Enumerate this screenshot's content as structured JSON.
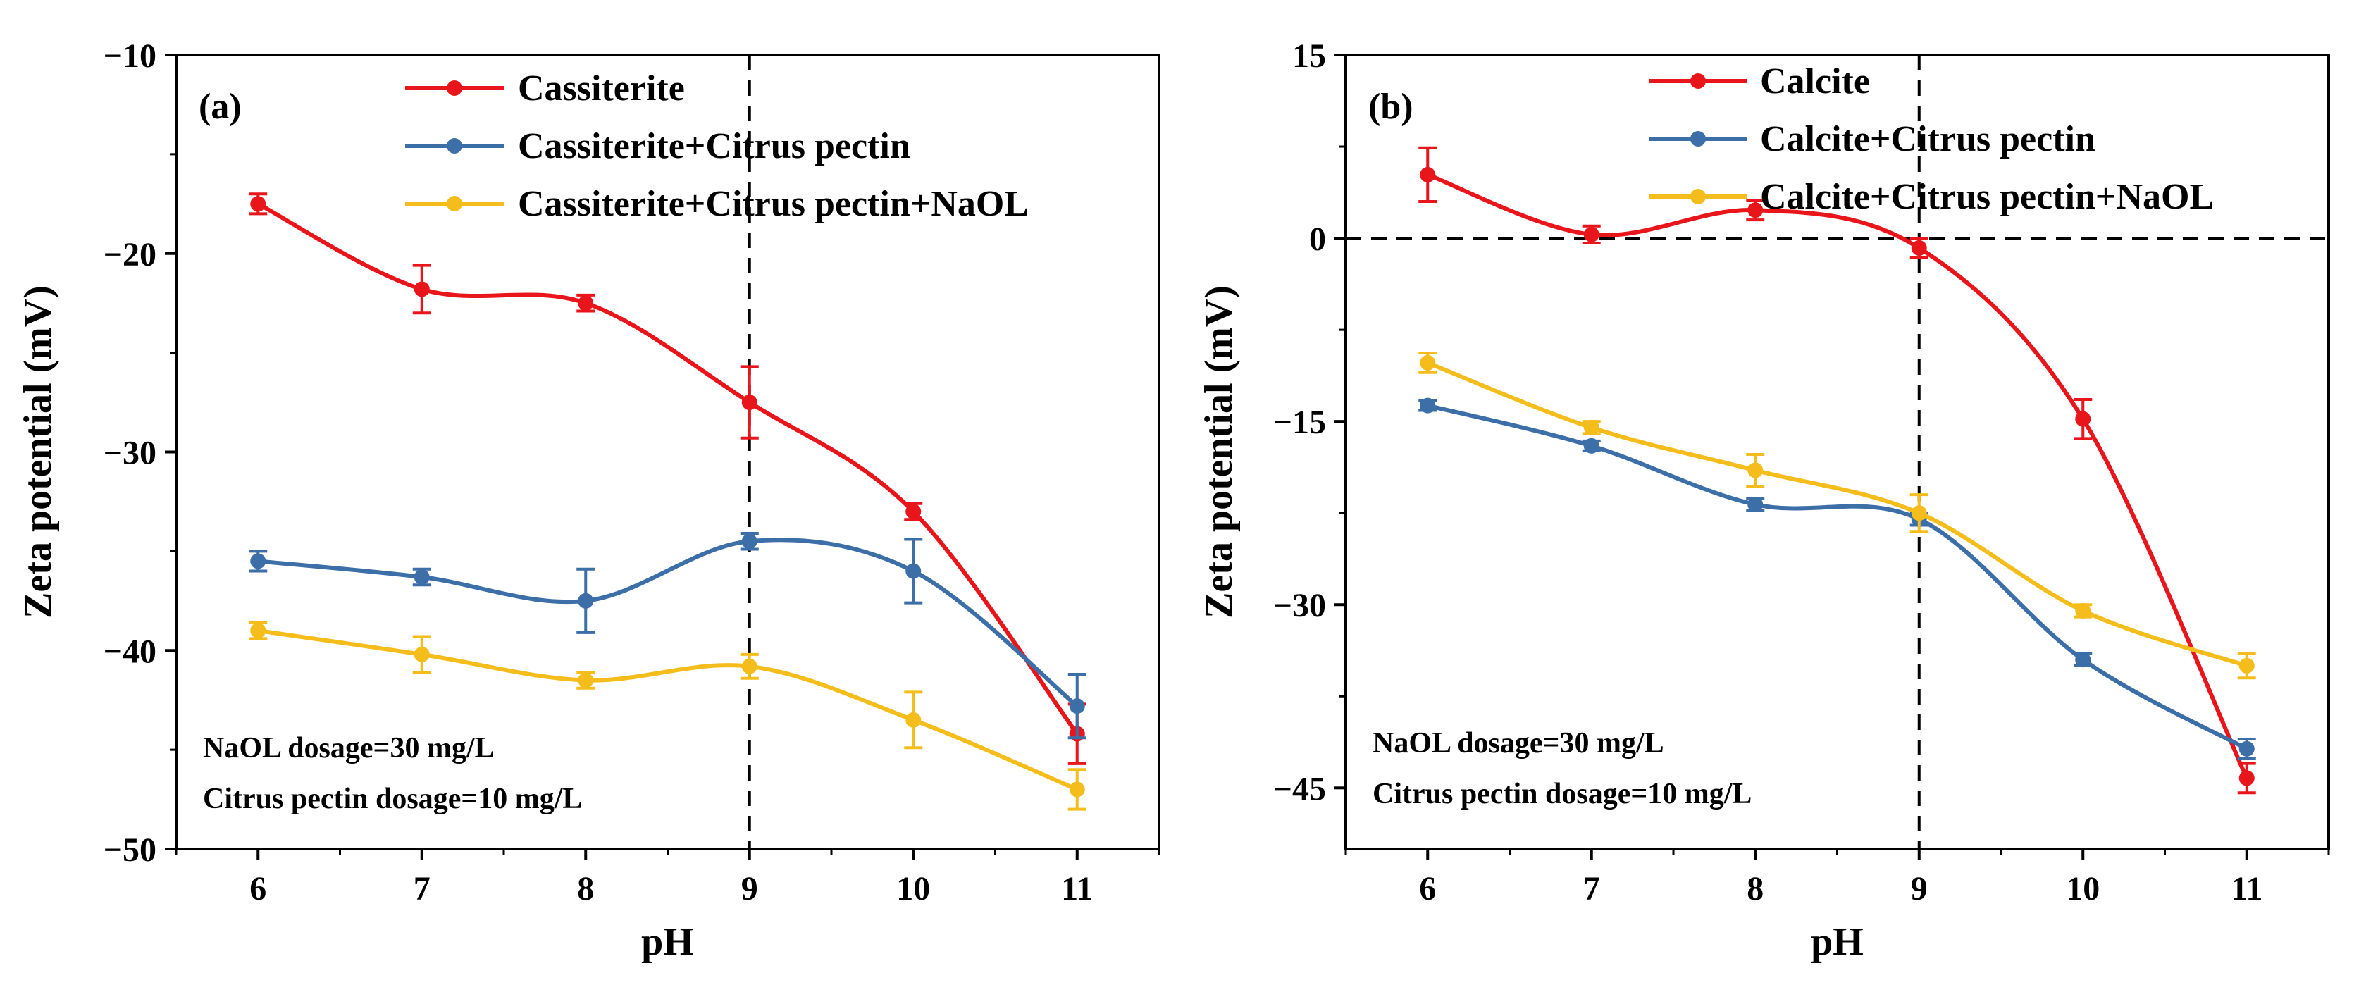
{
  "chart_data": [
    {
      "type": "line",
      "panel_label": "(a)",
      "xlabel": "pH",
      "ylabel": "Zeta potential (mV)",
      "x": [
        6,
        7,
        8,
        9,
        10,
        11
      ],
      "xlim": [
        5.5,
        11.5
      ],
      "ylim": [
        -50,
        -10
      ],
      "xticks": [
        6,
        7,
        8,
        9,
        10,
        11
      ],
      "yticks": [
        -10,
        -20,
        -30,
        -40,
        -50
      ],
      "ytick_labels": [
        "−10",
        "−20",
        "−30",
        "−40",
        "−50"
      ],
      "vline_x": 9,
      "legend_position": "top-right",
      "series": [
        {
          "name": "Cassiterite",
          "color": "#e8161b",
          "values": [
            -17.5,
            -21.8,
            -22.5,
            -27.5,
            -33.0,
            -44.2
          ],
          "errors": [
            0.5,
            1.2,
            0.4,
            1.8,
            0.4,
            1.5
          ]
        },
        {
          "name": "Cassiterite+Citrus pectin",
          "color": "#3c6ea8",
          "values": [
            -35.5,
            -36.3,
            -37.5,
            -34.5,
            -36.0,
            -42.8
          ],
          "errors": [
            0.5,
            0.4,
            1.6,
            0.4,
            1.6,
            1.6
          ]
        },
        {
          "name": "Cassiterite+Citrus pectin+NaOL",
          "color": "#f5bd1b",
          "values": [
            -39.0,
            -40.2,
            -41.5,
            -40.8,
            -43.5,
            -47.0
          ],
          "errors": [
            0.4,
            0.9,
            0.4,
            0.6,
            1.4,
            1.0
          ]
        }
      ],
      "annotations": [
        "NaOL dosage=30 mg/L",
        "Citrus pectin dosage=10 mg/L"
      ]
    },
    {
      "type": "line",
      "panel_label": "(b)",
      "xlabel": "pH",
      "ylabel": "Zeta potential (mV)",
      "x": [
        6,
        7,
        8,
        9,
        10,
        11
      ],
      "xlim": [
        5.5,
        11.5
      ],
      "ylim": [
        -50,
        15
      ],
      "xticks": [
        6,
        7,
        8,
        9,
        10,
        11
      ],
      "yticks": [
        15,
        0,
        -15,
        -30,
        -45
      ],
      "ytick_labels": [
        "15",
        "0",
        "−15",
        "−30",
        "−45"
      ],
      "vline_x": 9,
      "hline_y": 0,
      "legend_position": "top-right",
      "series": [
        {
          "name": "Calcite",
          "color": "#e8161b",
          "values": [
            5.2,
            0.3,
            2.3,
            -0.8,
            -14.8,
            -44.2
          ],
          "errors": [
            2.2,
            0.7,
            0.8,
            0.8,
            1.6,
            1.2
          ]
        },
        {
          "name": "Calcite+Citrus pectin",
          "color": "#3c6ea8",
          "values": [
            -13.7,
            -17.0,
            -21.8,
            -23.0,
            -34.5,
            -41.8
          ],
          "errors": [
            0.4,
            0.4,
            0.5,
            0.5,
            0.5,
            0.8
          ]
        },
        {
          "name": "Calcite+Citrus pectin+NaOL",
          "color": "#f5bd1b",
          "values": [
            -10.2,
            -15.5,
            -19.0,
            -22.5,
            -30.5,
            -35.0
          ],
          "errors": [
            0.8,
            0.5,
            1.3,
            1.5,
            0.5,
            1.0
          ]
        }
      ],
      "annotations": [
        "NaOL dosage=30 mg/L",
        "Citrus pectin dosage=10 mg/L"
      ]
    }
  ]
}
